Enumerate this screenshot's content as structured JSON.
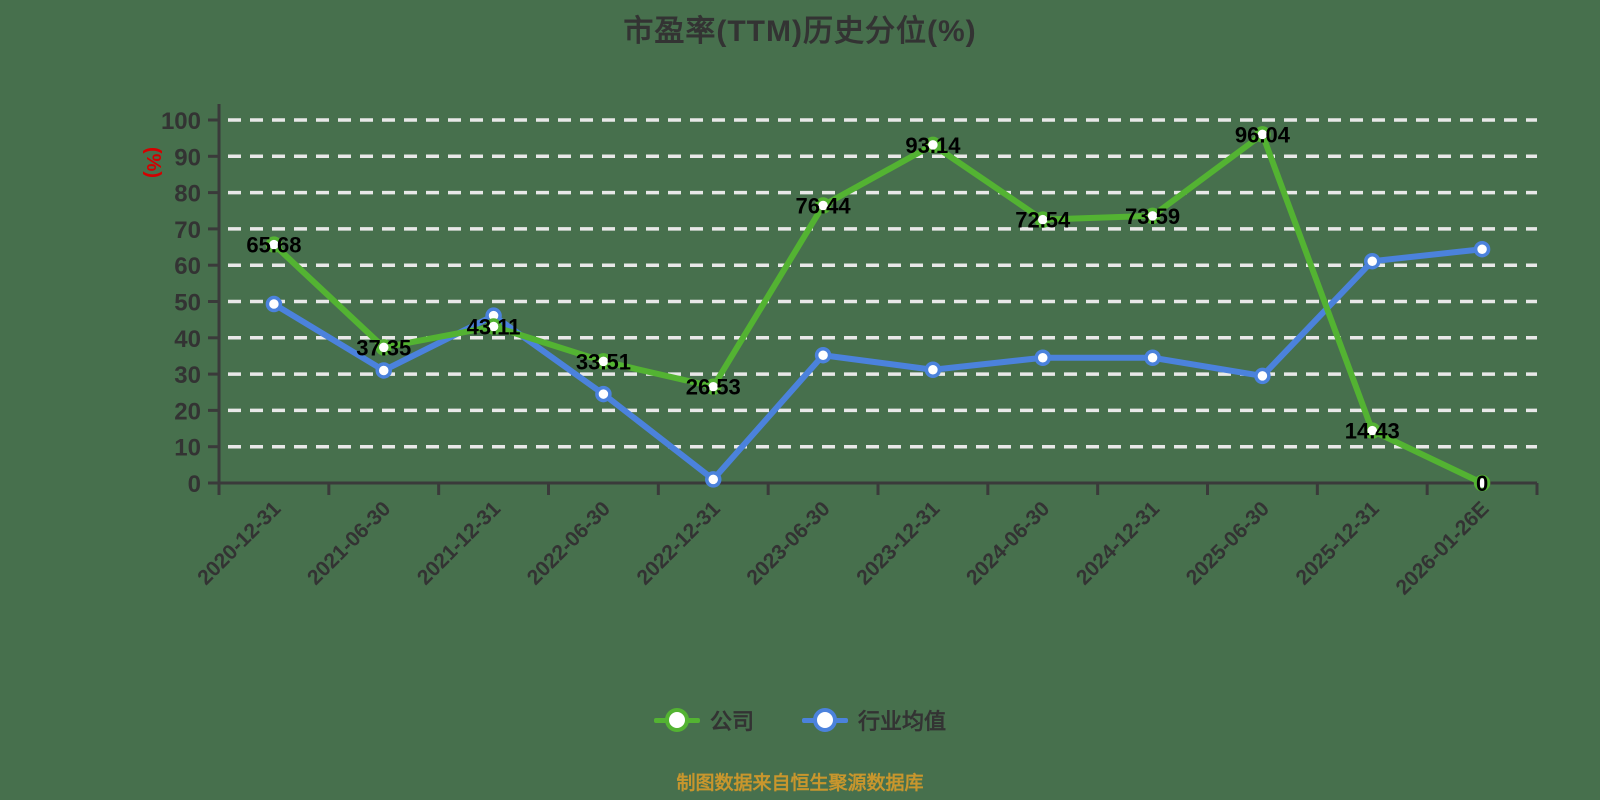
{
  "source_note": "制图数据来自恒生聚源数据库",
  "colors": {
    "background": "#47704d",
    "grid": "#e8e8e8",
    "axis": "#3a3a3a",
    "tick_text": "#333333",
    "value_label": "#000000",
    "title_text": "#333333",
    "ylabel_text": "#d40000",
    "source_text": "#c8962d",
    "marker_fill": "#ffffff",
    "company_green": "#53b332",
    "industry_blue": "#4b82dc"
  },
  "chart_data": {
    "type": "line",
    "title": "市盈率(TTM)历史分位(%)",
    "xlabel": "",
    "ylabel": "(%)",
    "ylim": [
      0,
      100
    ],
    "y_tick_step": 10,
    "y_ticks": [
      0,
      10,
      20,
      30,
      40,
      50,
      60,
      70,
      80,
      90,
      100
    ],
    "grid": "horizontal-dashed",
    "legend_position": "bottom-center",
    "x_label_rotation": -45,
    "categories": [
      "2020-12-31",
      "2021-06-30",
      "2021-12-31",
      "2022-06-30",
      "2022-12-31",
      "2023-06-30",
      "2023-12-31",
      "2024-06-30",
      "2024-12-31",
      "2025-06-30",
      "2025-12-31",
      "2026-01-26E"
    ],
    "series": [
      {
        "id": "company",
        "name": "公司",
        "color": "#53b332",
        "point_labels_shown": true,
        "values": [
          65.68,
          37.35,
          43.11,
          33.51,
          26.53,
          76.44,
          93.14,
          72.54,
          73.59,
          96.04,
          14.43,
          0
        ]
      },
      {
        "id": "industry-average",
        "name": "行业均值",
        "color": "#4b82dc",
        "point_labels_shown": false,
        "values": [
          49.3,
          31,
          46.1,
          24.5,
          1,
          35.2,
          31.2,
          34.5,
          34.5,
          29.5,
          61.1,
          64.4
        ]
      }
    ]
  }
}
